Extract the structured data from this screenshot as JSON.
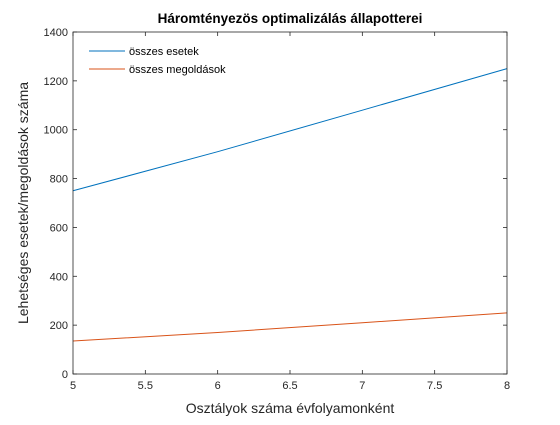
{
  "chart_data": {
    "type": "line",
    "title": "Háromtényezös optimalizálás állapotterei",
    "xlabel": "Osztályok száma évfolyamonként",
    "ylabel": "Lehetséges esetek/megoldások száma",
    "xlim": [
      5,
      8
    ],
    "ylim": [
      0,
      1400
    ],
    "xticks": [
      5,
      5.5,
      6,
      6.5,
      7,
      7.5,
      8
    ],
    "xtick_labels": [
      "5",
      "5.5",
      "6",
      "6.5",
      "7",
      "7.5",
      "8"
    ],
    "yticks": [
      0,
      200,
      400,
      600,
      800,
      1000,
      1200,
      1400
    ],
    "ytick_labels": [
      "0",
      "200",
      "400",
      "600",
      "800",
      "1000",
      "1200",
      "1400"
    ],
    "grid": false,
    "legend_position": "top-left",
    "series": [
      {
        "name": "összes esetek",
        "color": "#0072bd",
        "x": [
          5,
          6,
          7,
          8
        ],
        "y": [
          750,
          910,
          1080,
          1250
        ]
      },
      {
        "name": "összes megoldások",
        "color": "#d95319",
        "x": [
          5,
          6,
          7,
          8
        ],
        "y": [
          135,
          170,
          210,
          250
        ]
      }
    ]
  }
}
